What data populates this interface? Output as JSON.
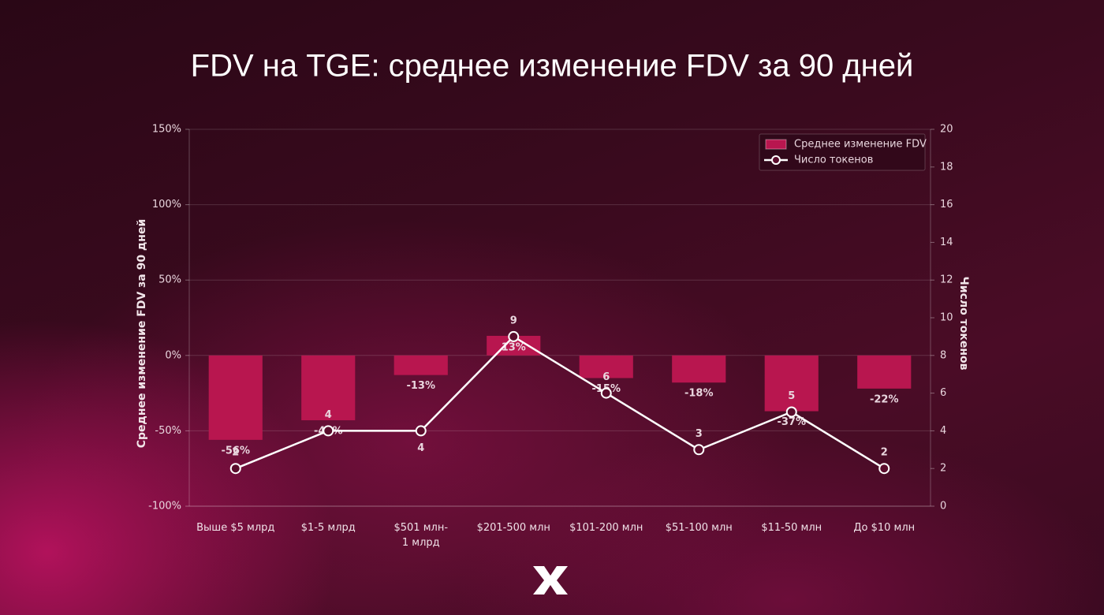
{
  "chart_data": {
    "type": "bar",
    "title": "FDV на TGE: среднее изменение FDV за 90 дней",
    "y_label": "Среднее изменение FDV за 90 дней",
    "y2_label": "Число токенов",
    "categories": [
      "Выше $5 млрд",
      "$1-5 млрд",
      "$501 млн-\n1 млрд",
      "$201-500 млн",
      "$101-200 млн",
      "$51-100 млн",
      "$11-50 млн",
      "До $10 млн"
    ],
    "series": [
      {
        "name": "Среднее изменение FDV",
        "type": "bar",
        "color": "#b8164f",
        "values": [
          -56,
          -43,
          -13,
          13,
          -15,
          -18,
          -37,
          -22
        ],
        "value_labels": [
          "-56%",
          "-43%",
          "-13%",
          "13%",
          "-15%",
          "-18%",
          "-37%",
          "-22%"
        ]
      },
      {
        "name": "Число токенов",
        "type": "line",
        "axis": "y2",
        "color": "#ffffff",
        "values": [
          2,
          4,
          4,
          9,
          6,
          3,
          5,
          2
        ]
      }
    ],
    "ylim": [
      -100,
      150
    ],
    "yticks": [
      {
        "value": -100,
        "label": "-100%"
      },
      {
        "value": -50,
        "label": "-50%"
      },
      {
        "value": 0,
        "label": "0%"
      },
      {
        "value": 50,
        "label": "50%"
      },
      {
        "value": 100,
        "label": "100%"
      },
      {
        "value": 150,
        "label": "150%"
      }
    ],
    "y2lim": [
      0,
      20
    ],
    "y2ticks": [
      0,
      2,
      4,
      6,
      8,
      10,
      12,
      14,
      16,
      18,
      20
    ],
    "grid": true,
    "legend": "upper right"
  }
}
